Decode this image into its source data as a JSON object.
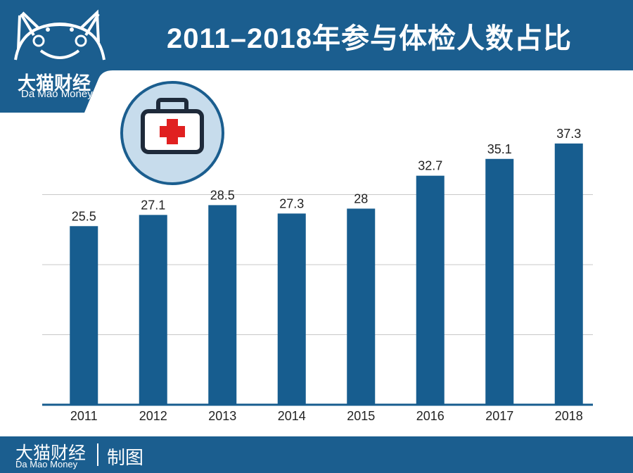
{
  "header": {
    "title": "2011–2018年参与体检人数占比",
    "logo_cn": "大猫财经",
    "logo_en": "Da Mao Money"
  },
  "footer": {
    "brand_cn": "大猫财经",
    "brand_en": "Da Mao Money",
    "tag": "制图"
  },
  "colors": {
    "brand": "#1b5e8f",
    "bar": "#175d8f",
    "badge_bg": "#c7dcec",
    "cross": "#e02020"
  },
  "icons": [
    "cat-logo-icon",
    "medical-kit-icon"
  ],
  "chart_data": {
    "type": "bar",
    "categories": [
      "2011",
      "2012",
      "2013",
      "2014",
      "2015",
      "2016",
      "2017",
      "2018"
    ],
    "values": [
      25.5,
      27.1,
      28.5,
      27.3,
      28,
      32.7,
      35.1,
      37.3
    ],
    "value_labels": [
      "25.5",
      "27.1",
      "28.5",
      "27.3",
      "28",
      "32.7",
      "35.1",
      "37.3"
    ],
    "ylim": [
      0,
      40
    ],
    "grid": true,
    "gridline_values": [
      10,
      20,
      30
    ],
    "y_axis_labels": false,
    "legend": false
  }
}
